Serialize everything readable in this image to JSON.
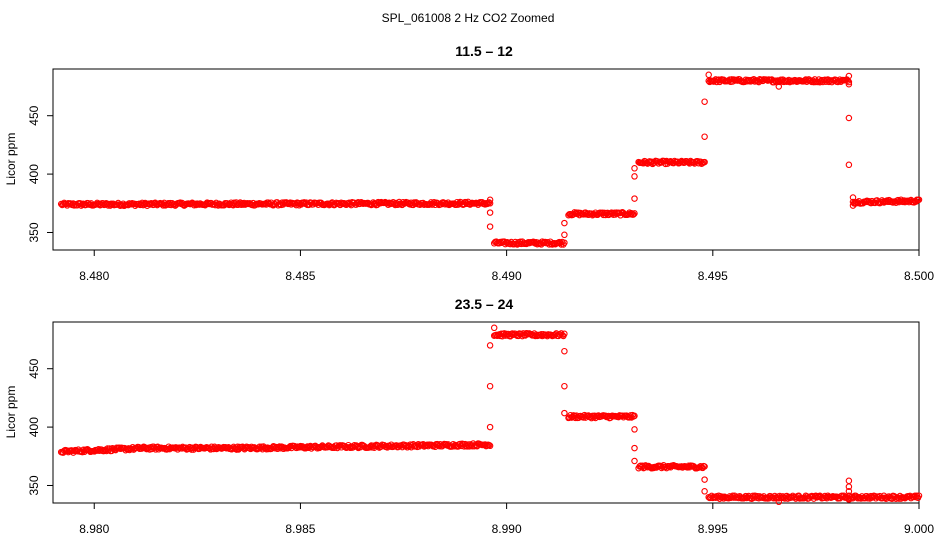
{
  "figure": {
    "suptitle": "SPL_061008  2 Hz CO2 Zoomed"
  },
  "chart_data": [
    {
      "type": "scatter",
      "title": "11.5 – 12",
      "xlabel": "",
      "ylabel": "Licor ppm",
      "xlim": [
        8.479,
        8.5
      ],
      "ylim": [
        335,
        490
      ],
      "x_ticks": [
        8.48,
        8.485,
        8.49,
        8.495,
        8.5
      ],
      "x_tick_labels": [
        "8.480",
        "8.485",
        "8.490",
        "8.495",
        "8.500"
      ],
      "y_ticks": [
        350,
        400,
        450
      ],
      "y_tick_labels": [
        "350",
        "400",
        "450"
      ],
      "marker": "open-circle",
      "color": "#ff0000",
      "segments": [
        {
          "x_start": 8.4792,
          "x_end": 8.4896,
          "y_start": 374,
          "y_end": 375
        },
        {
          "x_start": 8.4897,
          "x_end": 8.4914,
          "y_start": 341,
          "y_end": 341
        },
        {
          "x_start": 8.4915,
          "x_end": 8.4931,
          "y_start": 366,
          "y_end": 366
        },
        {
          "x_start": 8.4932,
          "x_end": 8.4948,
          "y_start": 410,
          "y_end": 410
        },
        {
          "x_start": 8.4949,
          "x_end": 8.4983,
          "y_start": 480,
          "y_end": 480
        },
        {
          "x_start": 8.4984,
          "x_end": 8.5,
          "y_start": 376,
          "y_end": 377
        }
      ],
      "transition_points": [
        {
          "x": 8.4896,
          "y": 378
        },
        {
          "x": 8.4896,
          "y": 367
        },
        {
          "x": 8.4896,
          "y": 355
        },
        {
          "x": 8.4914,
          "y": 348
        },
        {
          "x": 8.4914,
          "y": 358
        },
        {
          "x": 8.4931,
          "y": 379
        },
        {
          "x": 8.4931,
          "y": 398
        },
        {
          "x": 8.4931,
          "y": 405
        },
        {
          "x": 8.4948,
          "y": 432
        },
        {
          "x": 8.4948,
          "y": 462
        },
        {
          "x": 8.4949,
          "y": 485
        },
        {
          "x": 8.4966,
          "y": 475
        },
        {
          "x": 8.4983,
          "y": 484
        },
        {
          "x": 8.4983,
          "y": 477
        },
        {
          "x": 8.4983,
          "y": 448
        },
        {
          "x": 8.4983,
          "y": 408
        },
        {
          "x": 8.4984,
          "y": 380
        },
        {
          "x": 8.4984,
          "y": 373
        }
      ]
    },
    {
      "type": "scatter",
      "title": "23.5 – 24",
      "xlabel": "",
      "ylabel": "Licor ppm",
      "xlim": [
        8.979,
        9.0
      ],
      "ylim": [
        335,
        490
      ],
      "x_ticks": [
        8.98,
        8.985,
        8.99,
        8.995,
        9.0
      ],
      "x_tick_labels": [
        "8.980",
        "8.985",
        "8.990",
        "8.995",
        "9.000"
      ],
      "y_ticks": [
        350,
        400,
        450
      ],
      "y_tick_labels": [
        "350",
        "400",
        "450"
      ],
      "marker": "open-circle",
      "color": "#ff0000",
      "segments": [
        {
          "x_start": 8.9792,
          "x_end": 8.9812,
          "y_start": 379,
          "y_end": 382
        },
        {
          "x_start": 8.9812,
          "x_end": 8.9835,
          "y_start": 382,
          "y_end": 382
        },
        {
          "x_start": 8.9835,
          "x_end": 8.9896,
          "y_start": 382,
          "y_end": 385
        },
        {
          "x_start": 8.9897,
          "x_end": 8.9914,
          "y_start": 479,
          "y_end": 479
        },
        {
          "x_start": 8.9915,
          "x_end": 8.9931,
          "y_start": 409,
          "y_end": 409
        },
        {
          "x_start": 8.9932,
          "x_end": 8.9948,
          "y_start": 366,
          "y_end": 366
        },
        {
          "x_start": 8.9949,
          "x_end": 9.0,
          "y_start": 340,
          "y_end": 340
        }
      ],
      "transition_points": [
        {
          "x": 8.9896,
          "y": 400
        },
        {
          "x": 8.9896,
          "y": 435
        },
        {
          "x": 8.9896,
          "y": 470
        },
        {
          "x": 8.9897,
          "y": 485
        },
        {
          "x": 8.9914,
          "y": 465
        },
        {
          "x": 8.9914,
          "y": 435
        },
        {
          "x": 8.9914,
          "y": 412
        },
        {
          "x": 8.9931,
          "y": 398
        },
        {
          "x": 8.9931,
          "y": 382
        },
        {
          "x": 8.9931,
          "y": 371
        },
        {
          "x": 8.9948,
          "y": 355
        },
        {
          "x": 8.9948,
          "y": 345
        },
        {
          "x": 8.9966,
          "y": 336
        },
        {
          "x": 8.9983,
          "y": 354
        },
        {
          "x": 8.9983,
          "y": 349
        },
        {
          "x": 8.9983,
          "y": 345
        },
        {
          "x": 8.9983,
          "y": 338
        }
      ]
    }
  ]
}
